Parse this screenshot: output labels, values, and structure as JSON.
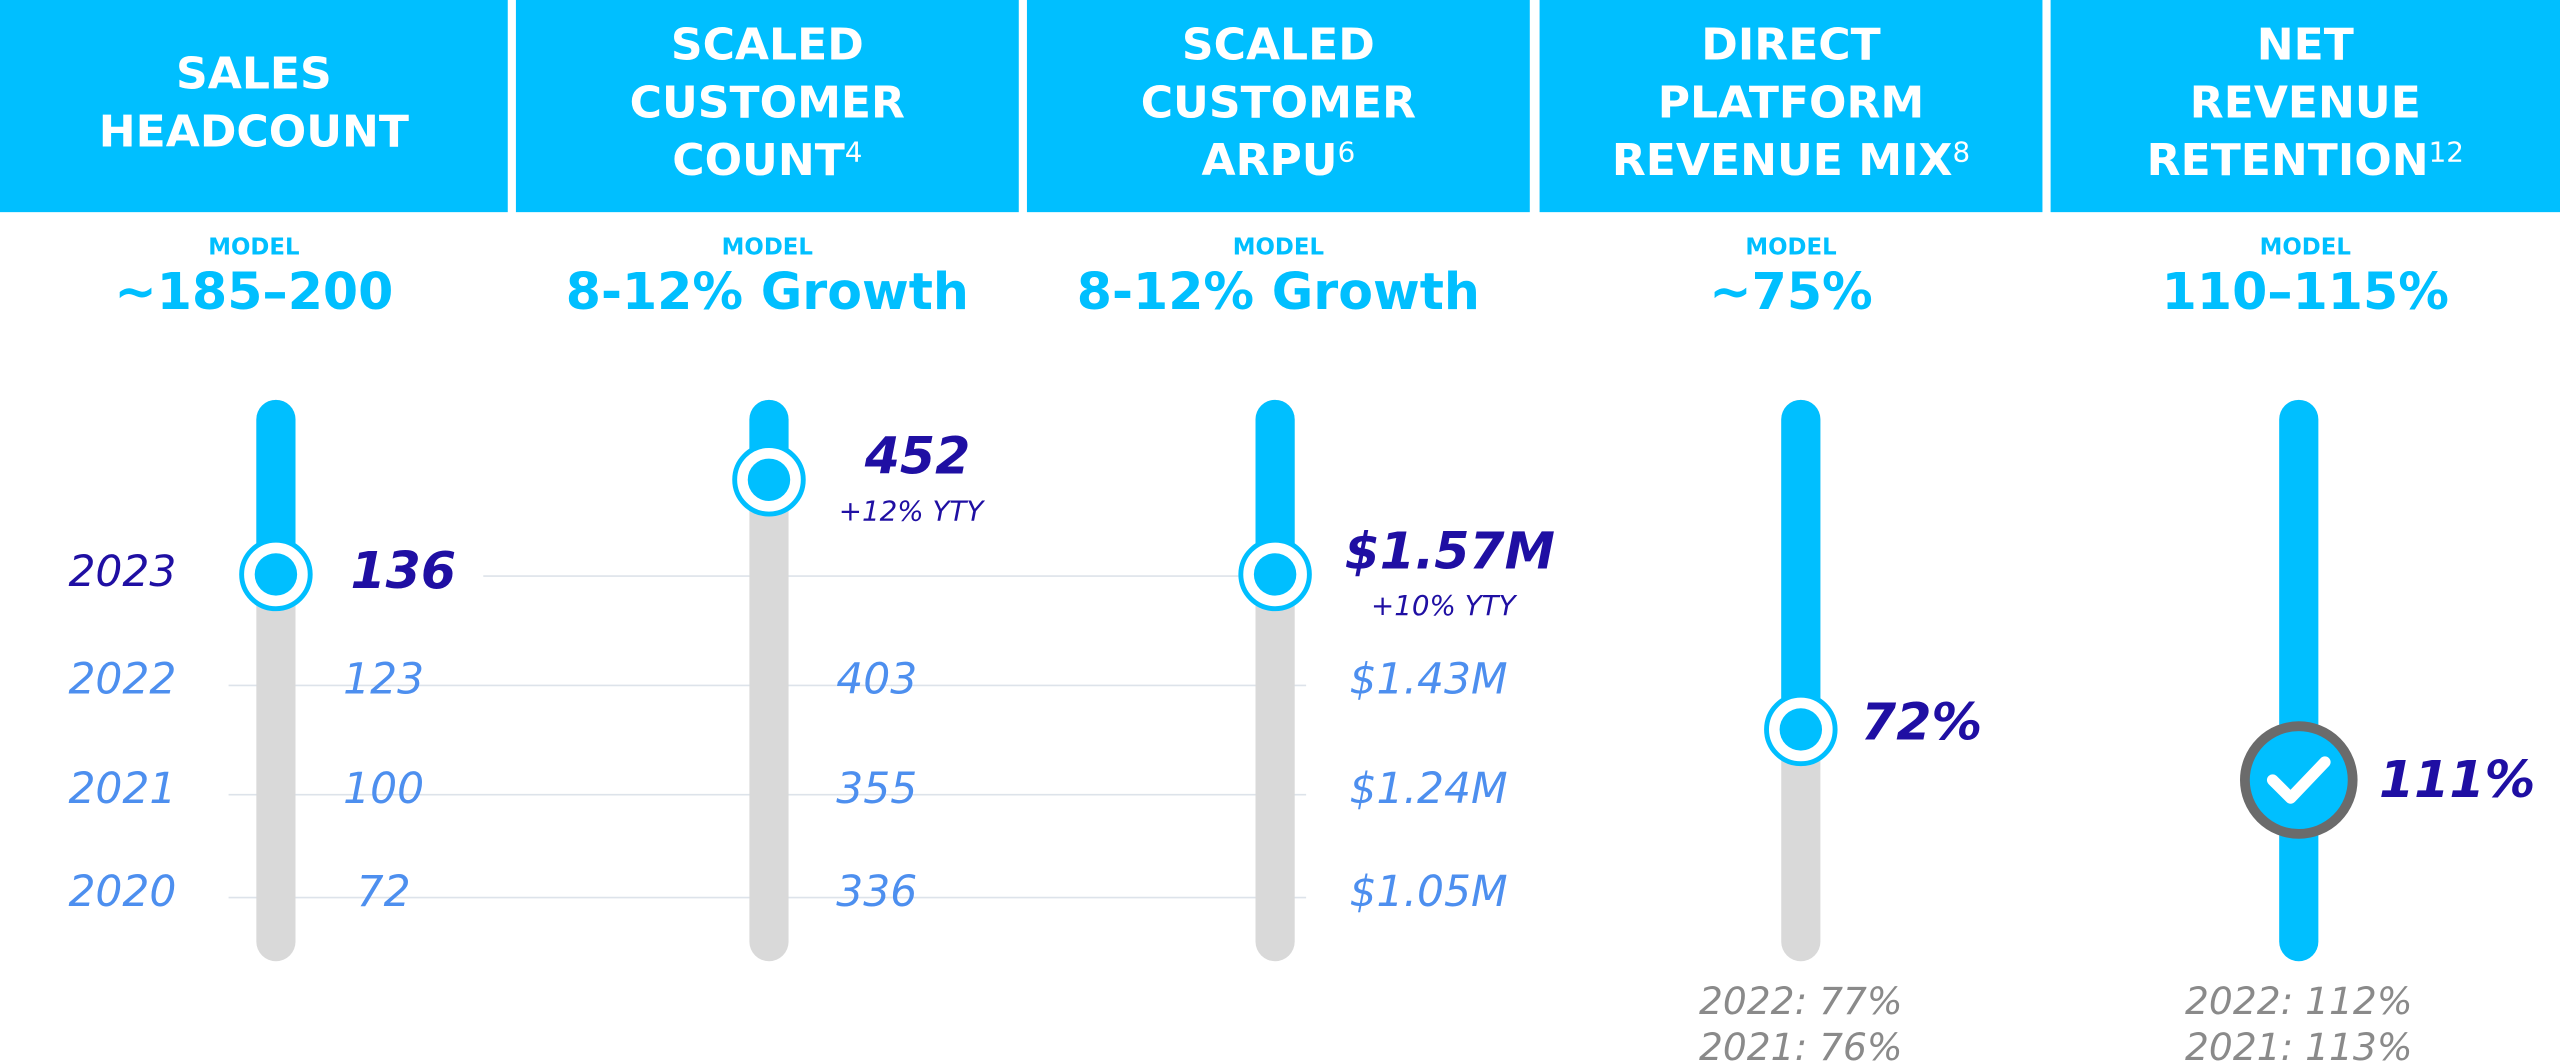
{
  "years": [
    "2023",
    "2022",
    "2021",
    "2020"
  ],
  "columns": [
    {
      "header": [
        "SALES",
        "HEADCOUNT"
      ],
      "model_label": "MODEL",
      "model": "~185–200",
      "current": "136",
      "history": [
        "123",
        "100",
        "72"
      ]
    },
    {
      "header": [
        "SCALED",
        "CUSTOMER",
        "COUNT"
      ],
      "footnote": "4",
      "model_label": "MODEL",
      "model": "8-12% Growth",
      "current": "452",
      "change": "+12% YTY",
      "history": [
        "403",
        "355",
        "336"
      ]
    },
    {
      "header": [
        "SCALED",
        "CUSTOMER",
        "ARPU"
      ],
      "footnote": "6",
      "model_label": "MODEL",
      "model": "8-12% Growth",
      "current": "$1.57M",
      "change": "+10% YTY",
      "history": [
        "$1.43M",
        "$1.24M",
        "$1.05M"
      ]
    },
    {
      "header": [
        "DIRECT",
        "PLATFORM",
        "REVENUE MIX"
      ],
      "footnote": "8",
      "model_label": "MODEL",
      "model": "~75%",
      "current": "72%",
      "prior": [
        "2022: 77%",
        "2021: 76%"
      ]
    },
    {
      "header": [
        "NET",
        "REVENUE",
        "RETENTION"
      ],
      "footnote": "12",
      "model_label": "MODEL",
      "model": "110–115%",
      "current": "111%",
      "prior": [
        "2022: 112%",
        "2021: 113%"
      ]
    }
  ]
}
